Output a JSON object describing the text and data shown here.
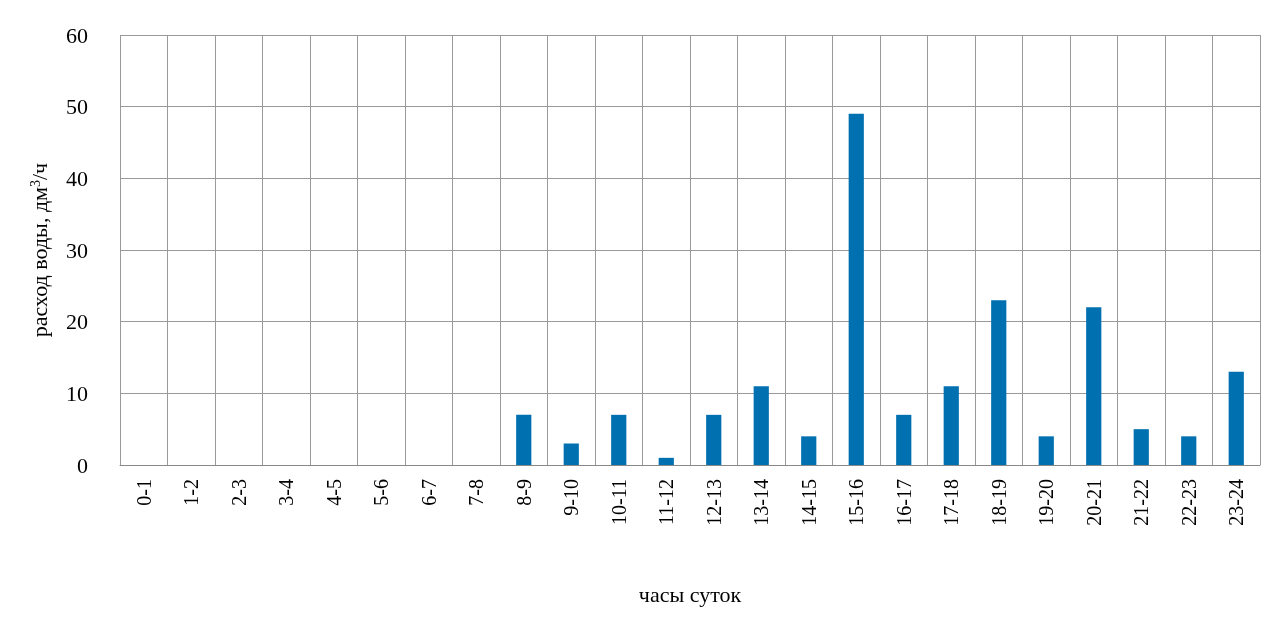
{
  "chart_data": {
    "type": "bar",
    "xlabel": "часы суток",
    "ylabel": "расход воды, дм$^{3}$/ч",
    "categories": [
      "0-1",
      "1-2",
      "2-3",
      "3-4",
      "4-5",
      "5-6",
      "6-7",
      "7-8",
      "8-9",
      "9-10",
      "10-11",
      "11-12",
      "12-13",
      "13-14",
      "14-15",
      "15-16",
      "16-17",
      "17-18",
      "18-19",
      "19-20",
      "20-21",
      "21-22",
      "22-23",
      "23-24"
    ],
    "values": [
      0,
      0,
      0,
      0,
      0,
      0,
      0,
      0,
      7,
      3,
      7,
      1,
      7,
      11,
      4,
      49,
      7,
      11,
      23,
      4,
      22,
      5,
      4,
      13
    ],
    "color": "#0070b0",
    "ylim": [
      0,
      60
    ],
    "yticks": [
      0,
      10,
      20,
      30,
      40,
      50,
      60
    ],
    "grid": true
  }
}
